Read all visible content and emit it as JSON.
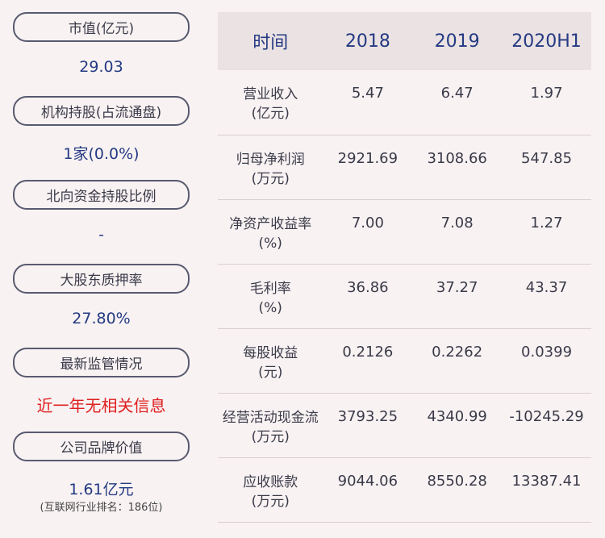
{
  "left_panel": {
    "items": [
      {
        "label": "市值(亿元)",
        "value": "29.03"
      },
      {
        "label": "机构持股(占流通盘)",
        "value": "1家(0.0%)"
      },
      {
        "label": "北向资金持股比例",
        "value": "-"
      },
      {
        "label": "大股东质押率",
        "value": "27.80%"
      },
      {
        "label": "最新监管情况",
        "value": "近一年无相关信息"
      },
      {
        "label": "公司品牌价值",
        "value": "1.61亿元",
        "sub": "(互联网行业排名：186位)"
      }
    ]
  },
  "table": {
    "headers": [
      "时间",
      "2018",
      "2019",
      "2020H1"
    ],
    "rows": [
      {
        "label1": "营业收入",
        "label2": "(亿元)",
        "values": [
          "5.47",
          "6.47",
          "1.97"
        ]
      },
      {
        "label1": "归母净利润",
        "label2": "(万元)",
        "values": [
          "2921.69",
          "3108.66",
          "547.85"
        ]
      },
      {
        "label1": "净资产收益率",
        "label2": "(%)",
        "values": [
          "7.00",
          "7.08",
          "1.27"
        ]
      },
      {
        "label1": "毛利率",
        "label2": "(%)",
        "values": [
          "36.86",
          "37.27",
          "43.37"
        ]
      },
      {
        "label1": "每股收益",
        "label2": "(元)",
        "values": [
          "0.2126",
          "0.2262",
          "0.0399"
        ]
      },
      {
        "label1": "经营活动现金流",
        "label2": "(万元)",
        "values": [
          "3793.25",
          "4340.99",
          "-10245.29"
        ]
      },
      {
        "label1": "应收账款",
        "label2": "(万元)",
        "values": [
          "9044.06",
          "8550.28",
          "13387.41"
        ]
      }
    ]
  }
}
